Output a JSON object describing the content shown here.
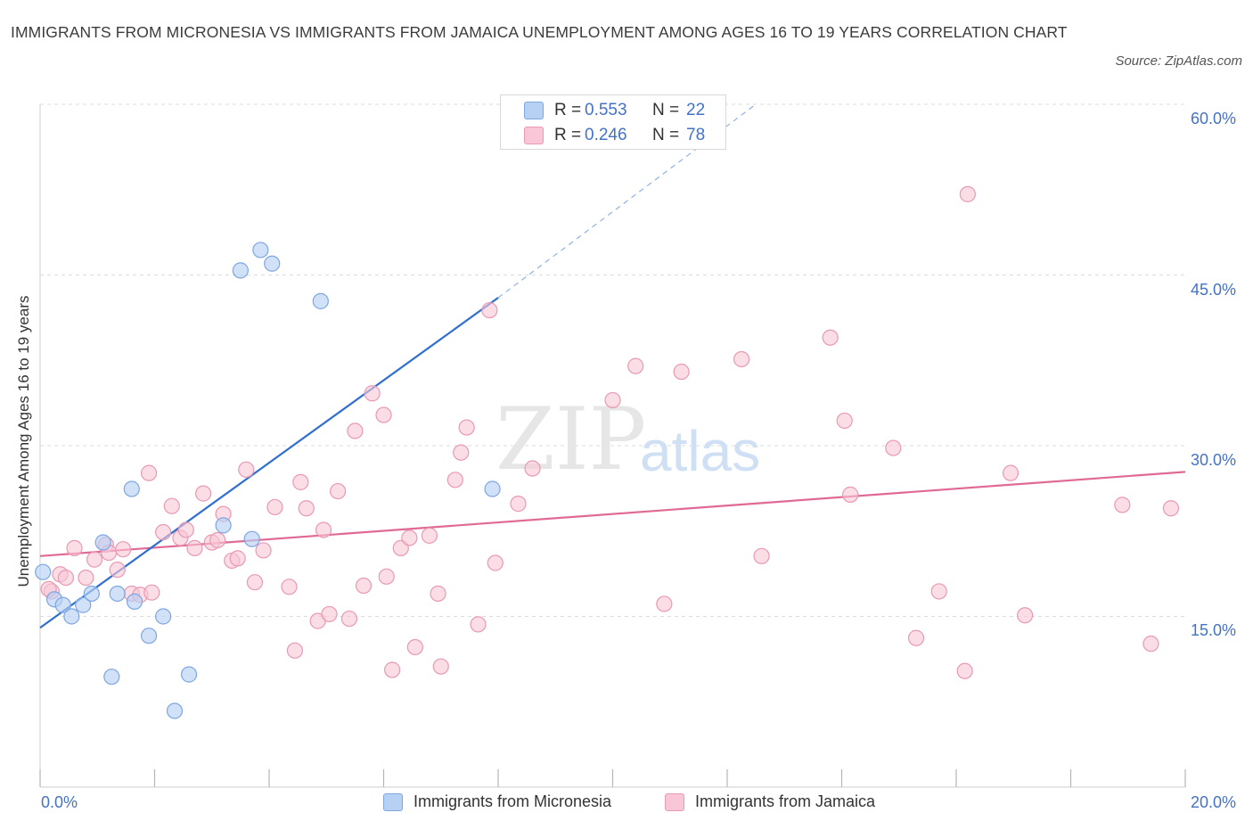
{
  "title": "IMMIGRANTS FROM MICRONESIA VS IMMIGRANTS FROM JAMAICA UNEMPLOYMENT AMONG AGES 16 TO 19 YEARS CORRELATION CHART",
  "source": "Source: ZipAtlas.com",
  "watermark": {
    "zip": "ZIP",
    "atlas": "atlas"
  },
  "legend": {
    "r_label": "R =",
    "n_label": "N =",
    "series": [
      {
        "name": "Immigrants from Micronesia",
        "r": "0.553",
        "n": "22"
      },
      {
        "name": "Immigrants from Jamaica",
        "r": "0.246",
        "n": "78"
      }
    ]
  },
  "colors": {
    "micronesia_fill": "#b7d1f5",
    "micronesia_stroke": "#7ea6e0",
    "micronesia_line": "#2f6fcf",
    "jamaica_fill": "#f8c6d6",
    "jamaica_stroke": "#e899b4",
    "jamaica_line": "#e06a95",
    "tick_text": "#4472c4"
  },
  "chart_data": {
    "type": "scatter",
    "title": "IMMIGRANTS FROM MICRONESIA VS IMMIGRANTS FROM JAMAICA UNEMPLOYMENT AMONG AGES 16 TO 19 YEARS CORRELATION CHART",
    "xlabel": "",
    "ylabel": "Unemployment Among Ages 16 to 19 years",
    "xlim": [
      0,
      20
    ],
    "ylim": [
      0,
      60
    ],
    "x_tick_labels": [
      "0.0%",
      "20.0%"
    ],
    "y_tick_labels": [
      "15.0%",
      "30.0%",
      "45.0%",
      "60.0%"
    ],
    "y_ticks": [
      15,
      30,
      45,
      60
    ],
    "grid": true,
    "legend_position": "top-center",
    "series": [
      {
        "name": "Immigrants from Micronesia",
        "r": 0.553,
        "n": 22,
        "points": [
          [
            0.05,
            18.9
          ],
          [
            0.25,
            16.5
          ],
          [
            0.4,
            16.0
          ],
          [
            0.55,
            15.0
          ],
          [
            0.75,
            16.0
          ],
          [
            0.9,
            17.0
          ],
          [
            1.1,
            21.5
          ],
          [
            1.25,
            9.7
          ],
          [
            1.35,
            17.0
          ],
          [
            1.6,
            26.2
          ],
          [
            1.65,
            16.3
          ],
          [
            1.9,
            13.3
          ],
          [
            2.15,
            15.0
          ],
          [
            2.35,
            6.7
          ],
          [
            2.6,
            9.9
          ],
          [
            3.2,
            23.0
          ],
          [
            3.5,
            45.4
          ],
          [
            3.7,
            21.8
          ],
          [
            3.85,
            47.2
          ],
          [
            4.05,
            46.0
          ],
          [
            4.9,
            42.7
          ],
          [
            7.9,
            26.2
          ]
        ],
        "trend": {
          "x": [
            0,
            8
          ],
          "y": [
            14.0,
            43.0
          ],
          "dashed_extension_to": [
            12.5,
            60
          ]
        }
      },
      {
        "name": "Immigrants from Jamaica",
        "r": 0.246,
        "n": 78,
        "points": [
          [
            0.2,
            17.2
          ],
          [
            0.35,
            18.7
          ],
          [
            0.45,
            18.4
          ],
          [
            0.6,
            21.0
          ],
          [
            0.8,
            18.4
          ],
          [
            0.95,
            20.0
          ],
          [
            1.15,
            21.3
          ],
          [
            1.2,
            20.6
          ],
          [
            1.35,
            19.1
          ],
          [
            1.45,
            20.9
          ],
          [
            1.6,
            17.0
          ],
          [
            1.75,
            16.9
          ],
          [
            1.95,
            17.1
          ],
          [
            1.9,
            27.6
          ],
          [
            2.15,
            22.4
          ],
          [
            2.3,
            24.7
          ],
          [
            2.45,
            21.9
          ],
          [
            2.55,
            22.6
          ],
          [
            2.7,
            21.0
          ],
          [
            2.85,
            25.8
          ],
          [
            3.0,
            21.5
          ],
          [
            3.1,
            21.7
          ],
          [
            3.2,
            24.0
          ],
          [
            3.35,
            19.9
          ],
          [
            3.45,
            20.1
          ],
          [
            3.6,
            27.9
          ],
          [
            3.75,
            18.0
          ],
          [
            3.9,
            20.8
          ],
          [
            4.1,
            24.6
          ],
          [
            4.35,
            17.6
          ],
          [
            4.45,
            12.0
          ],
          [
            4.55,
            26.8
          ],
          [
            4.65,
            24.5
          ],
          [
            4.85,
            14.6
          ],
          [
            4.95,
            22.6
          ],
          [
            5.05,
            15.2
          ],
          [
            5.2,
            26.0
          ],
          [
            5.4,
            14.8
          ],
          [
            5.5,
            31.3
          ],
          [
            5.65,
            17.7
          ],
          [
            5.8,
            34.6
          ],
          [
            6.0,
            32.7
          ],
          [
            6.05,
            18.5
          ],
          [
            6.15,
            10.3
          ],
          [
            6.3,
            21.0
          ],
          [
            6.45,
            21.9
          ],
          [
            6.55,
            12.3
          ],
          [
            6.8,
            22.1
          ],
          [
            6.95,
            17.0
          ],
          [
            7.0,
            10.6
          ],
          [
            7.25,
            27.0
          ],
          [
            7.35,
            29.4
          ],
          [
            7.45,
            31.6
          ],
          [
            7.65,
            14.3
          ],
          [
            7.85,
            41.9
          ],
          [
            7.95,
            19.7
          ],
          [
            8.35,
            24.9
          ],
          [
            8.6,
            28.0
          ],
          [
            10.0,
            34.0
          ],
          [
            10.4,
            37.0
          ],
          [
            10.9,
            16.1
          ],
          [
            11.2,
            36.5
          ],
          [
            12.25,
            37.6
          ],
          [
            12.6,
            20.3
          ],
          [
            13.8,
            39.5
          ],
          [
            14.05,
            32.2
          ],
          [
            14.15,
            25.7
          ],
          [
            14.9,
            29.8
          ],
          [
            15.3,
            13.1
          ],
          [
            15.7,
            17.2
          ],
          [
            16.15,
            10.2
          ],
          [
            16.2,
            52.1
          ],
          [
            16.95,
            27.6
          ],
          [
            17.2,
            15.1
          ],
          [
            18.9,
            24.8
          ],
          [
            19.4,
            12.6
          ],
          [
            19.75,
            24.5
          ],
          [
            0.15,
            17.4
          ]
        ],
        "trend": {
          "x": [
            0,
            20
          ],
          "y": [
            20.3,
            27.7
          ]
        }
      }
    ]
  }
}
